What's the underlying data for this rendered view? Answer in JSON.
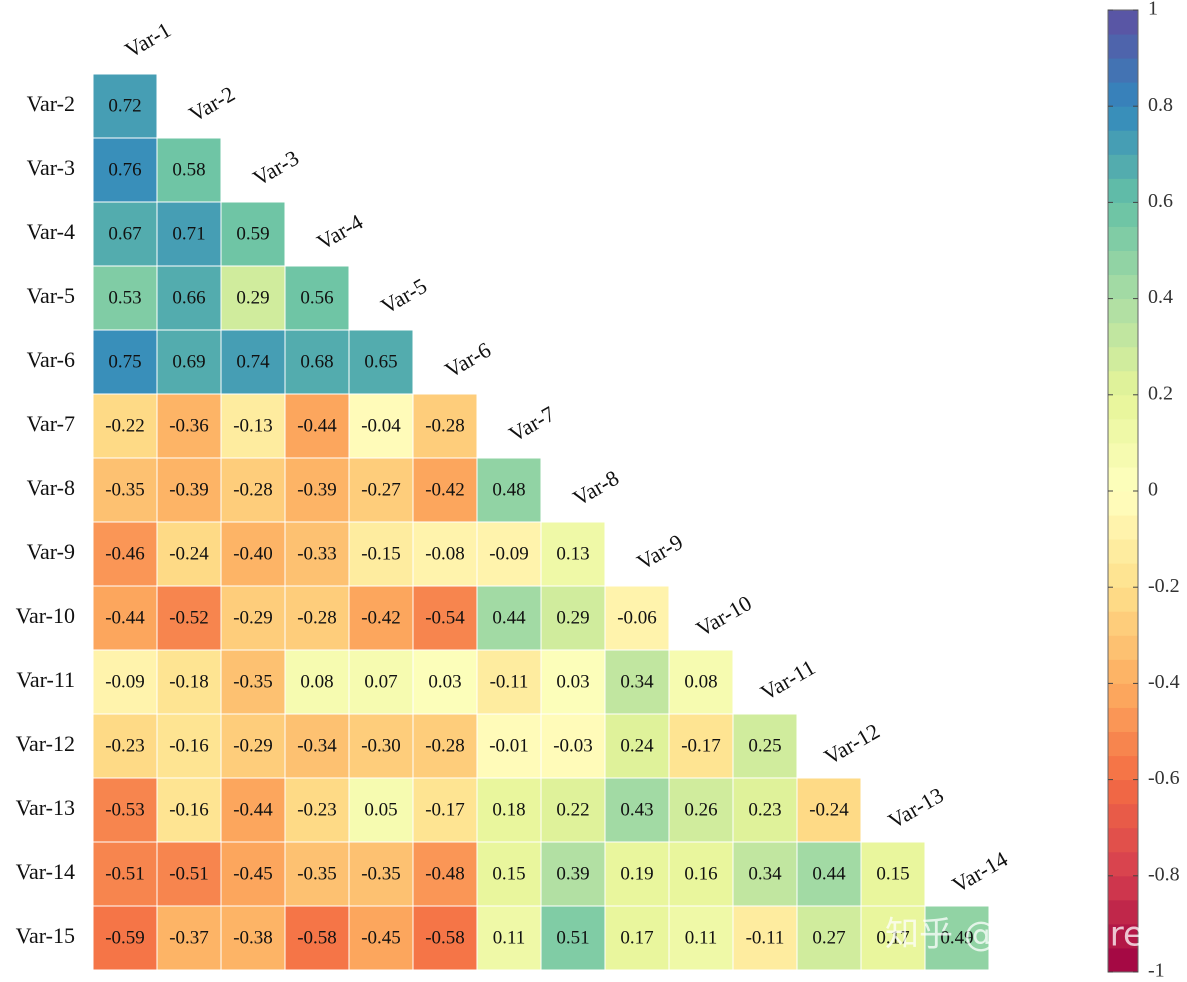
{
  "chart_data": {
    "type": "heatmap",
    "rows": [
      "Var-2",
      "Var-3",
      "Var-4",
      "Var-5",
      "Var-6",
      "Var-7",
      "Var-8",
      "Var-9",
      "Var-10",
      "Var-11",
      "Var-12",
      "Var-13",
      "Var-14",
      "Var-15"
    ],
    "columns": [
      "Var-1",
      "Var-2",
      "Var-3",
      "Var-4",
      "Var-5",
      "Var-6",
      "Var-7",
      "Var-8",
      "Var-9",
      "Var-10",
      "Var-11",
      "Var-12",
      "Var-13",
      "Var-14"
    ],
    "values": [
      [
        0.72
      ],
      [
        0.76,
        0.58
      ],
      [
        0.67,
        0.71,
        0.59
      ],
      [
        0.53,
        0.66,
        0.29,
        0.56
      ],
      [
        0.75,
        0.69,
        0.74,
        0.68,
        0.65
      ],
      [
        -0.22,
        -0.36,
        -0.13,
        -0.44,
        -0.04,
        -0.28
      ],
      [
        -0.35,
        -0.39,
        -0.28,
        -0.39,
        -0.27,
        -0.42,
        0.48
      ],
      [
        -0.46,
        -0.24,
        -0.4,
        -0.33,
        -0.15,
        -0.08,
        -0.09,
        0.13
      ],
      [
        -0.44,
        -0.52,
        -0.29,
        -0.28,
        -0.42,
        -0.54,
        0.44,
        0.29,
        -0.06
      ],
      [
        -0.09,
        -0.18,
        -0.35,
        0.08,
        0.07,
        0.03,
        -0.11,
        0.03,
        0.34,
        0.08
      ],
      [
        -0.23,
        -0.16,
        -0.29,
        -0.34,
        -0.3,
        -0.28,
        -0.01,
        -0.03,
        0.24,
        -0.17,
        0.25
      ],
      [
        -0.53,
        -0.16,
        -0.44,
        -0.23,
        0.05,
        -0.17,
        0.18,
        0.22,
        0.43,
        0.26,
        0.23,
        -0.24
      ],
      [
        -0.51,
        -0.51,
        -0.45,
        -0.35,
        -0.35,
        -0.48,
        0.15,
        0.39,
        0.19,
        0.16,
        0.34,
        0.44,
        0.15
      ],
      [
        -0.59,
        -0.37,
        -0.38,
        -0.58,
        -0.45,
        -0.58,
        0.11,
        0.51,
        0.17,
        0.11,
        -0.11,
        0.27,
        0.17,
        0.49
      ]
    ],
    "value_labels": [
      [
        "0.72"
      ],
      [
        "0.76",
        "0.58"
      ],
      [
        "0.67",
        "0.71",
        "0.59"
      ],
      [
        "0.53",
        "0.66",
        "0.29",
        "0.56"
      ],
      [
        "0.75",
        "0.69",
        "0.74",
        "0.68",
        "0.65"
      ],
      [
        "-0.22",
        "-0.36",
        "-0.13",
        "-0.44",
        "-0.04",
        "-0.28"
      ],
      [
        "-0.35",
        "-0.39",
        "-0.28",
        "-0.39",
        "-0.27",
        "-0.42",
        "0.48"
      ],
      [
        "-0.46",
        "-0.24",
        "-0.40",
        "-0.33",
        "-0.15",
        "-0.08",
        "-0.09",
        "0.13"
      ],
      [
        "-0.44",
        "-0.52",
        "-0.29",
        "-0.28",
        "-0.42",
        "-0.54",
        "0.44",
        "0.29",
        "-0.06"
      ],
      [
        "-0.09",
        "-0.18",
        "-0.35",
        "0.08",
        "0.07",
        "0.03",
        "-0.11",
        "0.03",
        "0.34",
        "0.08"
      ],
      [
        "-0.23",
        "-0.16",
        "-0.29",
        "-0.34",
        "-0.30",
        "-0.28",
        "-0.01",
        "-0.03",
        "0.24",
        "-0.17",
        "0.25"
      ],
      [
        "-0.53",
        "-0.16",
        "-0.44",
        "-0.23",
        "0.05",
        "-0.17",
        "0.18",
        "0.22",
        "0.43",
        "0.26",
        "0.23",
        "-0.24"
      ],
      [
        "-0.51",
        "-0.51",
        "-0.45",
        "-0.35",
        "-0.35",
        "-0.48",
        "0.15",
        "0.39",
        "0.19",
        "0.16",
        "0.34",
        "0.44",
        "0.15"
      ],
      [
        "-0.59",
        "-0.37",
        "-0.38",
        "-0.58",
        "-0.45",
        "-0.58",
        "0.11",
        "0.51",
        "0.17",
        "0.11",
        "-0.11",
        "0.27",
        "0.17",
        "0.49"
      ]
    ],
    "colormap": [
      "#9e0142",
      "#d53e4f",
      "#f46d43",
      "#fdae61",
      "#fee08b",
      "#ffffbf",
      "#e6f598",
      "#abdda4",
      "#66c2a5",
      "#3288bd",
      "#5e4fa2"
    ],
    "colorbar_levels": 40,
    "clim": [
      -1,
      1
    ],
    "cticks": [
      -1,
      -0.8,
      -0.6,
      -0.4,
      -0.2,
      0,
      0.2,
      0.4,
      0.6,
      0.8,
      1
    ],
    "watermark": "知乎 @slandarer"
  }
}
